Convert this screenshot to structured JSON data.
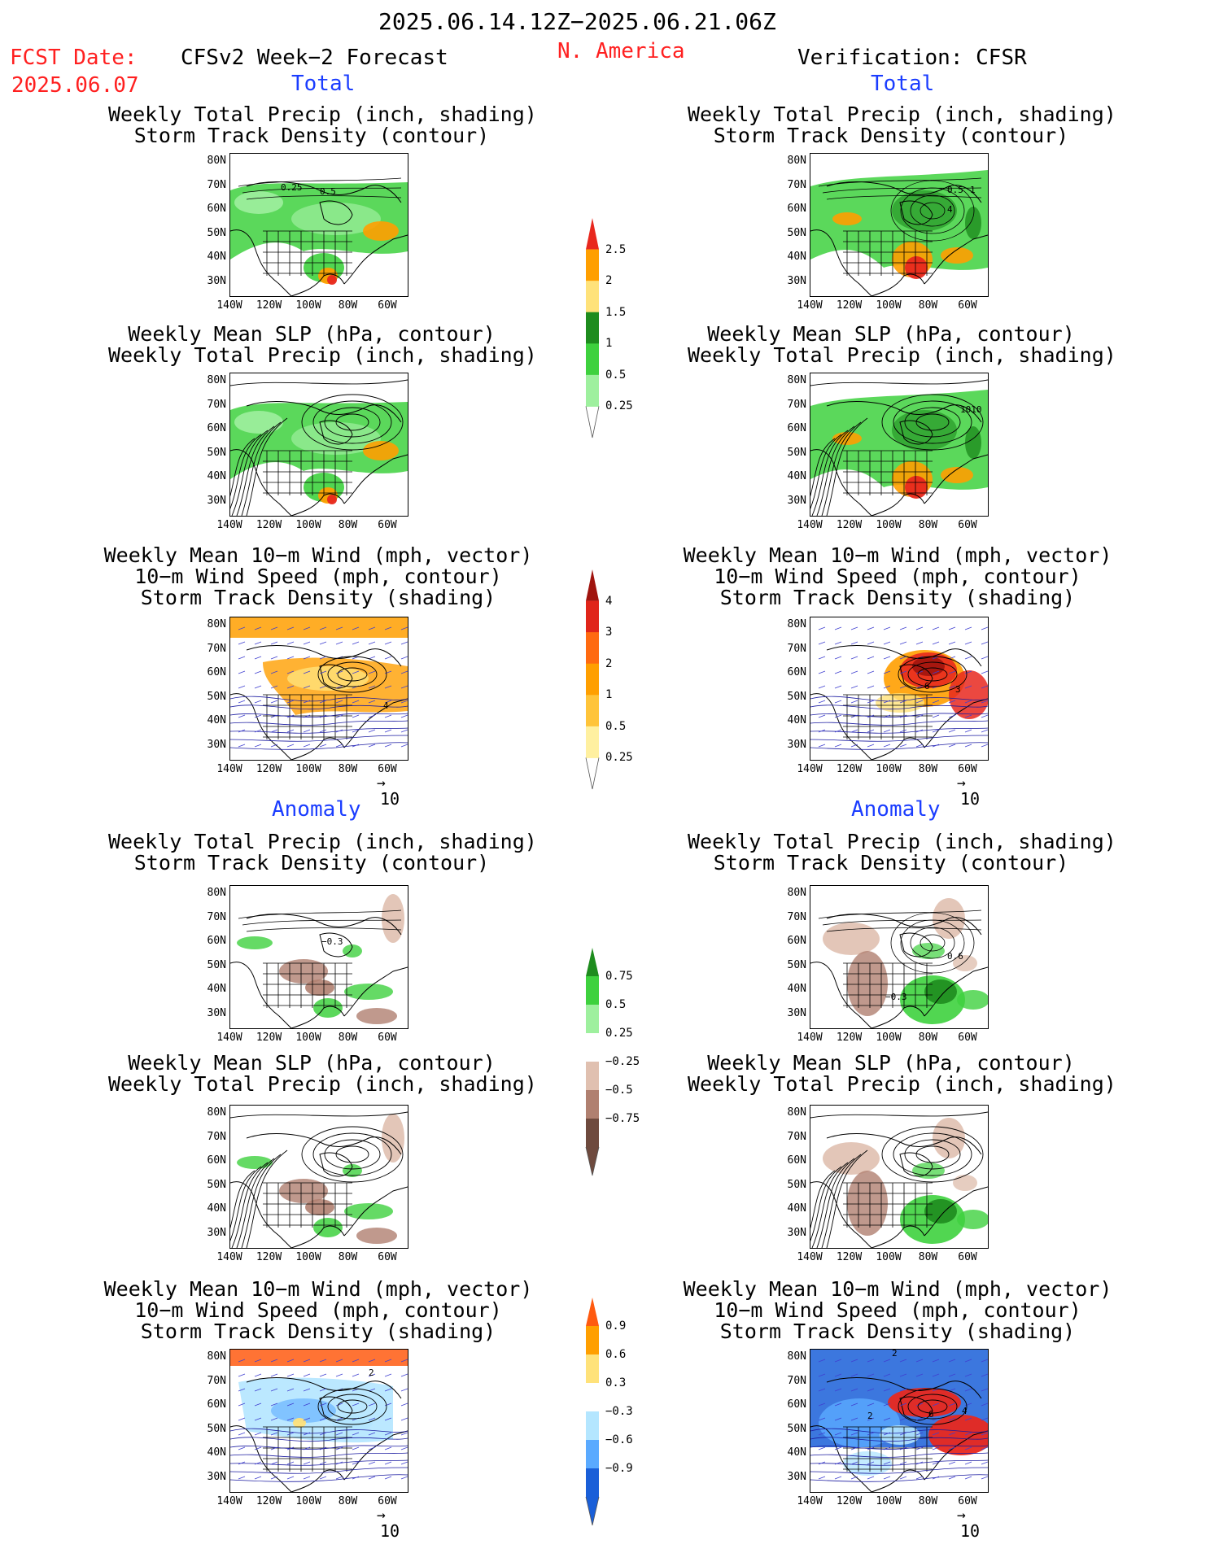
{
  "header": {
    "period": "2025.06.14.12Z−2025.06.21.06Z",
    "region": "N. America",
    "fcst_date_label": "FCST Date:",
    "fcst_date_value": "2025.06.07",
    "model_title": "CFSv2 Week−2 Forecast",
    "verification": "Verification: CFSR"
  },
  "sections": {
    "total": "Total",
    "anomaly": "Anomaly"
  },
  "titles": {
    "precip_std": [
      "Weekly Total Precip (inch, shading)",
      "Storm Track Density (contour)"
    ],
    "slp_precip": [
      "Weekly Mean SLP (hPa, contour)",
      "Weekly Total Precip (inch, shading)"
    ],
    "wind_std": [
      "Weekly Mean 10−m Wind (mph, vector)",
      "10−m Wind Speed (mph, contour)",
      "Storm Track Density (shading)"
    ]
  },
  "axes": {
    "lat_labels": [
      "80N",
      "70N",
      "60N",
      "50N",
      "40N",
      "30N"
    ],
    "lon_labels": [
      "140W",
      "120W",
      "100W",
      "80W",
      "60W"
    ]
  },
  "vector_scale": "10",
  "map_contour_labels": {
    "f_total_precip": [
      "0.25",
      "0.5"
    ],
    "v_total_precip": [
      "0.5",
      "1",
      "4"
    ],
    "v_total_slp": [
      "1010"
    ],
    "f_total_wind": [
      "4"
    ],
    "v_total_wind": [
      "6",
      "3"
    ],
    "f_anom_precip": [
      "−0.3"
    ],
    "v_anom_precip": [
      "0.6",
      "−0.3"
    ],
    "f_anom_wind": [
      "2"
    ],
    "v_anom_wind": [
      "2",
      "2",
      "6",
      "4"
    ]
  },
  "colorbars": {
    "total_precip": {
      "labels": [
        "2.5",
        "2",
        "1.5",
        "1",
        "0.5",
        "0.25"
      ],
      "colors": [
        "#e8281e",
        "#ff9f00",
        "#ffe27a",
        "#1e8c1e",
        "#3ed13e",
        "#9ef09e"
      ]
    },
    "total_storm": {
      "labels": [
        "4",
        "3",
        "2",
        "1",
        "0.5",
        "0.25"
      ],
      "colors": [
        "#a0140e",
        "#e0251a",
        "#ff6a10",
        "#ff9f00",
        "#ffc43a",
        "#fff0a0"
      ]
    },
    "anom_precip": {
      "labels": [
        "0.75",
        "0.5",
        "0.25",
        "−0.25",
        "−0.5",
        "−0.75"
      ],
      "colors": [
        "#1e8c1e",
        "#3ed13e",
        "#9ef09e",
        "#ffffff",
        "#e0c0b0",
        "#b08070",
        "#6e4a3e"
      ]
    },
    "anom_storm": {
      "labels": [
        "0.9",
        "0.6",
        "0.3",
        "−0.3",
        "−0.6",
        "−0.9"
      ],
      "colors": [
        "#ff5a10",
        "#ff9f00",
        "#ffe27a",
        "#ffffff",
        "#b4e6ff",
        "#5aaaff",
        "#1a5fd8"
      ]
    }
  }
}
